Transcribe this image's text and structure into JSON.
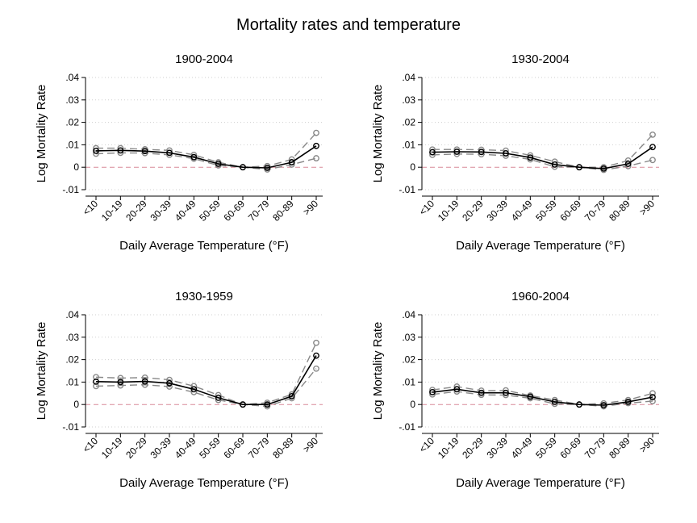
{
  "figure": {
    "title": "Mortality rates and temperature"
  },
  "chart_data": [
    {
      "type": "line",
      "title": "1900-2004",
      "xlabel": "Daily Average Temperature (°F)",
      "ylabel": "Log Mortality Rate",
      "categories": [
        "<10",
        "10-19",
        "20-29",
        "30-39",
        "40-49",
        "50-59",
        "60-69",
        "70-79",
        "80-89",
        ">90"
      ],
      "y_tick_labels": [
        ".04",
        ".03",
        ".02",
        ".01",
        "0",
        "-.01"
      ],
      "ylim": [
        -0.01,
        0.04
      ],
      "grid": "horizontal dotted",
      "reference_line": 0,
      "series": [
        {
          "style": "estimate",
          "color": "#000000",
          "values": [
            0.0073,
            0.0075,
            0.0072,
            0.0064,
            0.0045,
            0.0015,
            0.0,
            -0.0003,
            0.0022,
            0.0095
          ]
        },
        {
          "style": "upper-ci",
          "color": "#888888",
          "values": [
            0.0085,
            0.0085,
            0.008,
            0.0075,
            0.0055,
            0.0022,
            0.0,
            0.0005,
            0.0035,
            0.0153
          ]
        },
        {
          "style": "lower-ci",
          "color": "#888888",
          "values": [
            0.006,
            0.0064,
            0.0063,
            0.0055,
            0.0038,
            0.0008,
            0.0,
            -0.001,
            0.0012,
            0.004
          ]
        }
      ]
    },
    {
      "type": "line",
      "title": "1930-2004",
      "xlabel": "Daily Average Temperature (°F)",
      "ylabel": "Log Mortality Rate",
      "categories": [
        "<10",
        "10-19",
        "20-29",
        "30-39",
        "40-49",
        "50-59",
        "60-69",
        "70-79",
        "80-89",
        ">90"
      ],
      "y_tick_labels": [
        ".04",
        ".03",
        ".02",
        ".01",
        "0",
        "-.01"
      ],
      "ylim": [
        -0.01,
        0.04
      ],
      "grid": "horizontal dotted",
      "reference_line": 0,
      "series": [
        {
          "style": "estimate",
          "color": "#000000",
          "values": [
            0.0067,
            0.0069,
            0.0068,
            0.0062,
            0.0043,
            0.0012,
            0.0,
            -0.0006,
            0.0015,
            0.009
          ]
        },
        {
          "style": "upper-ci",
          "color": "#888888",
          "values": [
            0.0079,
            0.0079,
            0.0078,
            0.0074,
            0.0053,
            0.0025,
            0.0,
            0.0,
            0.003,
            0.0145
          ]
        },
        {
          "style": "lower-ci",
          "color": "#888888",
          "values": [
            0.0055,
            0.0059,
            0.0058,
            0.0051,
            0.0035,
            0.0002,
            0.0,
            -0.0012,
            0.0005,
            0.0032
          ]
        }
      ]
    },
    {
      "type": "line",
      "title": "1930-1959",
      "xlabel": "Daily Average Temperature (°F)",
      "ylabel": "Log Mortality Rate",
      "categories": [
        "<10",
        "10-19",
        "20-29",
        "30-39",
        "40-49",
        "50-59",
        "60-69",
        "70-79",
        "80-89",
        ">90"
      ],
      "y_tick_labels": [
        ".04",
        ".03",
        ".02",
        ".01",
        "0",
        "-.01"
      ],
      "ylim": [
        -0.01,
        0.04
      ],
      "grid": "horizontal dotted",
      "reference_line": 0,
      "series": [
        {
          "style": "estimate",
          "color": "#000000",
          "values": [
            0.0102,
            0.01,
            0.0103,
            0.0095,
            0.0068,
            0.003,
            0.0,
            0.0,
            0.0037,
            0.0218
          ]
        },
        {
          "style": "upper-ci",
          "color": "#888888",
          "values": [
            0.0122,
            0.0118,
            0.012,
            0.011,
            0.0082,
            0.0042,
            0.0,
            0.0008,
            0.0045,
            0.0275
          ]
        },
        {
          "style": "lower-ci",
          "color": "#888888",
          "values": [
            0.0082,
            0.0085,
            0.0088,
            0.008,
            0.0055,
            0.002,
            0.0,
            -0.0008,
            0.0028,
            0.016
          ]
        }
      ]
    },
    {
      "type": "line",
      "title": "1960-2004",
      "xlabel": "Daily Average Temperature (°F)",
      "ylabel": "Log Mortality Rate",
      "categories": [
        "<10",
        "10-19",
        "20-29",
        "30-39",
        "40-49",
        "50-59",
        "60-69",
        "70-79",
        "80-89",
        ">90"
      ],
      "y_tick_labels": [
        ".04",
        ".03",
        ".02",
        ".01",
        "0",
        "-.01"
      ],
      "ylim": [
        -0.01,
        0.04
      ],
      "grid": "horizontal dotted",
      "reference_line": 0,
      "series": [
        {
          "style": "estimate",
          "color": "#000000",
          "values": [
            0.0055,
            0.0068,
            0.0052,
            0.0052,
            0.0035,
            0.0012,
            0.0,
            -0.0003,
            0.0012,
            0.0033
          ]
        },
        {
          "style": "upper-ci",
          "color": "#888888",
          "values": [
            0.0065,
            0.008,
            0.0062,
            0.0063,
            0.004,
            0.002,
            0.0,
            0.0005,
            0.002,
            0.005
          ]
        },
        {
          "style": "lower-ci",
          "color": "#888888",
          "values": [
            0.0045,
            0.0058,
            0.0043,
            0.0042,
            0.0028,
            0.0003,
            0.0,
            -0.0008,
            0.0006,
            0.0015
          ]
        }
      ]
    }
  ]
}
